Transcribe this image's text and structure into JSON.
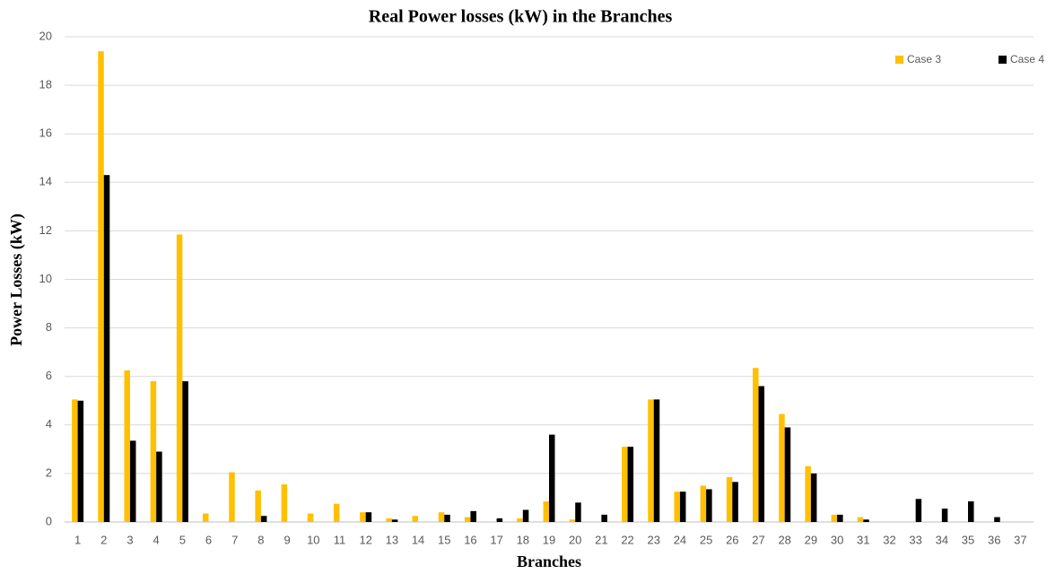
{
  "chart_data": {
    "type": "bar",
    "title": "Real Power losses (kW) in the Branches",
    "x_label": "Branches",
    "y_label": "Power Losses (kW)",
    "categories": [
      "1",
      "2",
      "3",
      "4",
      "5",
      "6",
      "7",
      "8",
      "9",
      "10",
      "11",
      "12",
      "13",
      "14",
      "15",
      "16",
      "17",
      "18",
      "19",
      "20",
      "21",
      "22",
      "23",
      "24",
      "25",
      "26",
      "27",
      "28",
      "29",
      "30",
      "31",
      "32",
      "33",
      "34",
      "35",
      "36",
      "37"
    ],
    "series": [
      {
        "name": "Case 3",
        "color": "#ffc000",
        "values": [
          5.05,
          19.4,
          6.25,
          5.8,
          11.85,
          0.35,
          2.05,
          1.3,
          1.55,
          0.35,
          0.75,
          0.4,
          0.15,
          0.25,
          0.4,
          0.2,
          0,
          0.15,
          0.85,
          0.1,
          0,
          3.1,
          5.05,
          1.25,
          1.5,
          1.85,
          6.35,
          4.45,
          2.3,
          0.3,
          0.2,
          0,
          0,
          0,
          0,
          0,
          0
        ]
      },
      {
        "name": "Case 4",
        "color": "#000000",
        "values": [
          5.0,
          14.3,
          3.35,
          2.9,
          5.8,
          0,
          0,
          0.25,
          0,
          0,
          0,
          0.4,
          0.1,
          0,
          0.3,
          0.45,
          0.15,
          0.5,
          3.6,
          0.8,
          0.3,
          3.1,
          5.05,
          1.25,
          1.35,
          1.65,
          5.6,
          3.9,
          2.0,
          0.3,
          0.1,
          0,
          0.95,
          0.55,
          0.85,
          0.2,
          0
        ]
      }
    ],
    "ylim": [
      0,
      20
    ],
    "yticks": [
      0,
      2,
      4,
      6,
      8,
      10,
      12,
      14,
      16,
      18,
      20
    ],
    "grid": true,
    "legend": "top-right"
  }
}
